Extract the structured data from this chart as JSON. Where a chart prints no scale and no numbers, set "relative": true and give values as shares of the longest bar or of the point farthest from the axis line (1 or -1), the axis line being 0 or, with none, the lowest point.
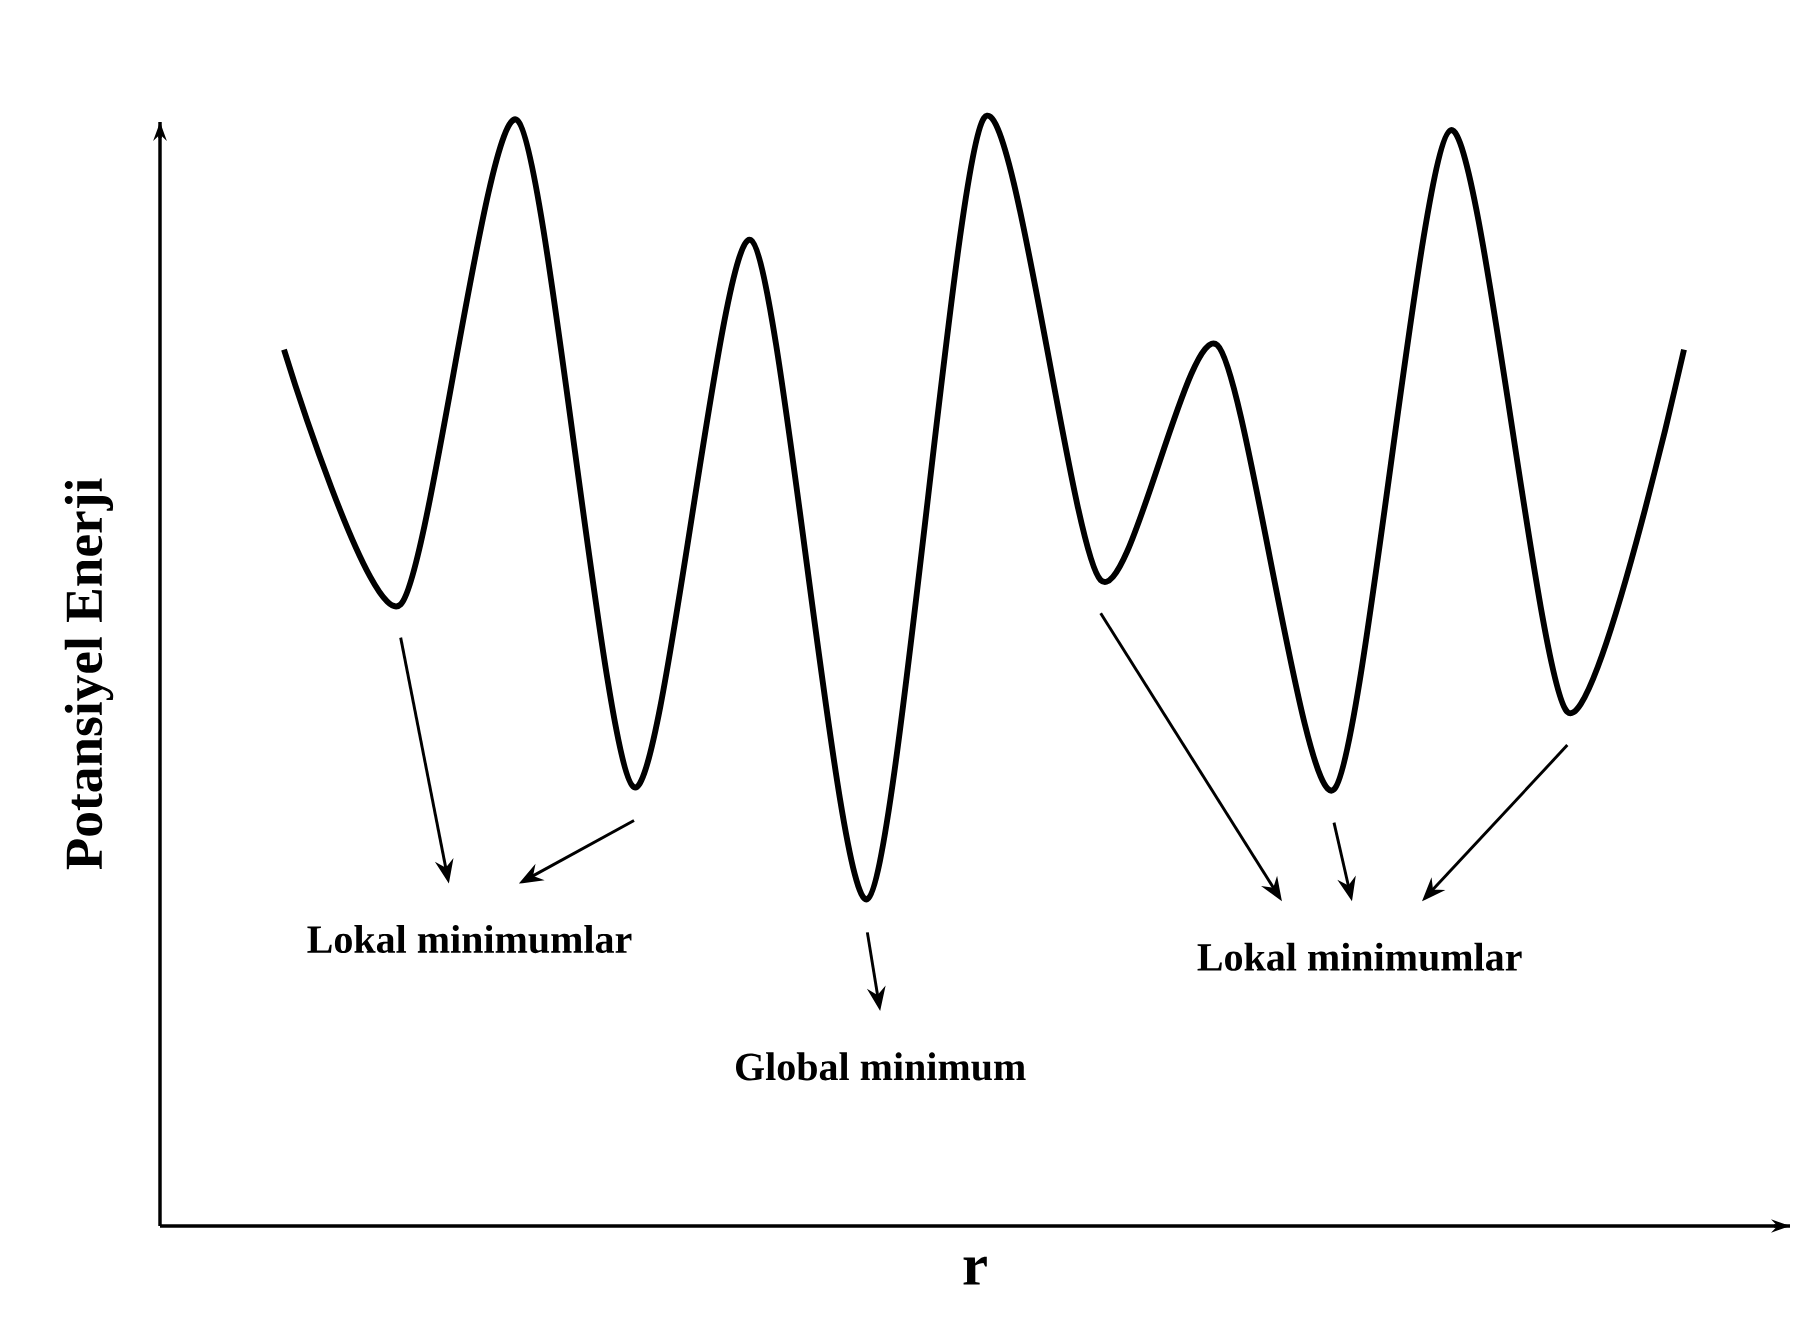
{
  "chart_data": {
    "type": "line",
    "relative": true,
    "xlabel": "r",
    "ylabel": "Potansiyel Enerji",
    "color": "#000000",
    "marker": "none",
    "line_style": "solid",
    "categories": [
      null,
      null,
      null,
      null,
      null,
      null,
      null,
      null,
      null,
      null,
      null,
      null,
      null
    ],
    "values": [
      0.791,
      0.561,
      0.998,
      0.396,
      0.89,
      0.295,
      1,
      0.583,
      0.795,
      0.394,
      0.989,
      0.464,
      0.791
    ],
    "annotations": [
      "Lokal minimumlar",
      "Global minimum",
      "Lokal minimumlar"
    ]
  }
}
